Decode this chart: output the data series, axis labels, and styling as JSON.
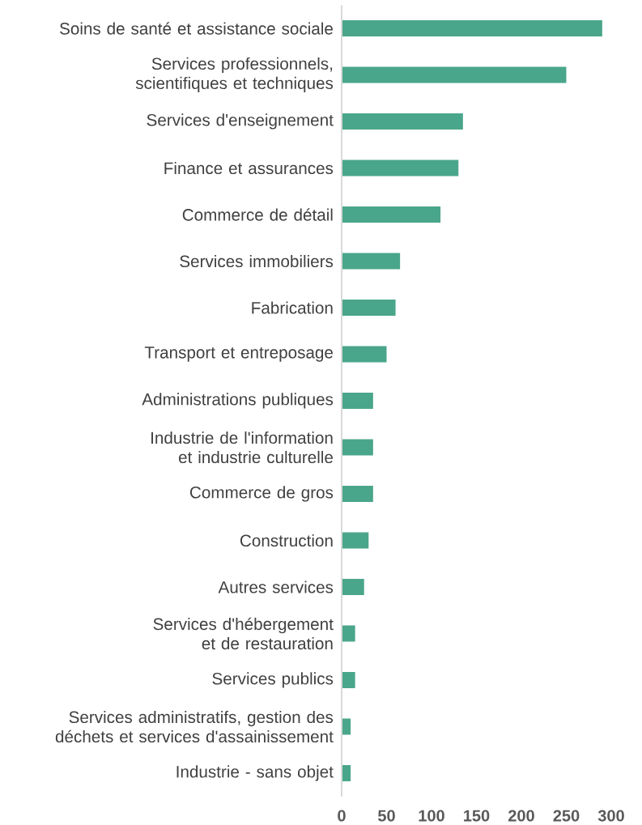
{
  "chart_data": {
    "type": "bar",
    "orientation": "horizontal",
    "categories": [
      "Soins de santé et assistance sociale",
      "Services professionnels, scientifiques et techniques",
      "Services d'enseignement",
      "Finance et assurances",
      "Commerce de détail",
      "Services immobiliers",
      "Fabrication",
      "Transport et entreposage",
      "Administrations publiques",
      "Industrie de l'information et industrie culturelle",
      "Commerce de gros",
      "Construction",
      "Autres services",
      "Services d'hébergement et de restauration",
      "Services publics",
      "Services administratifs, gestion des déchets et services d'assainissement",
      "Industrie - sans objet"
    ],
    "values": [
      290,
      250,
      135,
      130,
      110,
      65,
      60,
      50,
      35,
      35,
      35,
      30,
      25,
      15,
      15,
      10,
      10
    ],
    "color": "#4aa68a",
    "xlim": [
      0,
      300
    ],
    "xticks": [
      0,
      50,
      100,
      150,
      200,
      250,
      300
    ]
  }
}
